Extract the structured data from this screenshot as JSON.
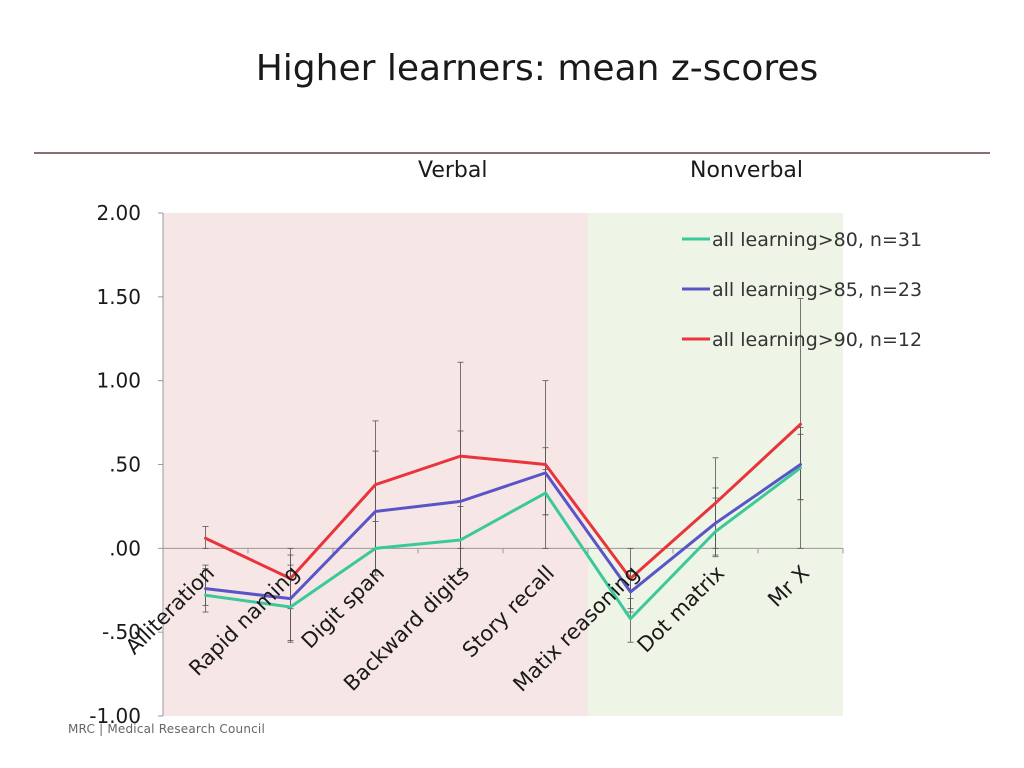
{
  "slide": {
    "title": "Higher learners: mean z-scores",
    "group_labels": {
      "verbal": "Verbal",
      "nonverbal": "Nonverbal"
    },
    "footer": "MRC | Medical Research Council"
  },
  "chart_data": {
    "type": "line",
    "title": "",
    "xlabel": "",
    "ylabel": "",
    "categories": [
      "Alliteration",
      "Rapid naming",
      "Digit span",
      "Backward digits",
      "Story recall",
      "Matix reasoning",
      "Dot matrix",
      "Mr X"
    ],
    "ylim": [
      -1.0,
      2.0
    ],
    "yticks": [
      2.0,
      1.5,
      1.0,
      0.5,
      0.0,
      -0.5,
      -1.0
    ],
    "ytick_labels": [
      "2.00",
      "1.50",
      "1.00",
      ".50",
      ".00",
      "-.50",
      "-1.00"
    ],
    "regions": [
      {
        "label": "Verbal",
        "from_category": "Alliteration",
        "to_category": "Story recall",
        "color": "#f7e6e6"
      },
      {
        "label": "Nonverbal",
        "from_category": "Matix reasoning",
        "to_category": "Mr X",
        "color": "#eef4e6"
      }
    ],
    "legend_position": "top-right",
    "series": [
      {
        "name": "all learning>80, n=31",
        "color": "#3cc99a",
        "values": [
          -0.28,
          -0.35,
          0.0,
          0.05,
          0.33,
          -0.42,
          0.1,
          0.48
        ],
        "error_low": [
          -0.34,
          -0.55,
          -0.14,
          -0.14,
          0.2,
          -0.56,
          -0.05,
          0.29
        ],
        "error_high": [
          -0.12,
          -0.1,
          0.16,
          0.25,
          0.47,
          -0.3,
          0.3,
          0.68
        ]
      },
      {
        "name": "all learning>85, n=23",
        "color": "#5a55c7",
        "values": [
          -0.24,
          -0.3,
          0.22,
          0.28,
          0.45,
          -0.26,
          0.15,
          0.5
        ],
        "error_low": [
          -0.38,
          -0.56,
          -0.16,
          -0.12,
          0.2,
          -0.38,
          -0.04,
          0.29
        ],
        "error_high": [
          -0.1,
          -0.04,
          0.58,
          0.7,
          0.6,
          -0.14,
          0.36,
          0.72
        ]
      },
      {
        "name": "all learning>90, n=12",
        "color": "#e8343a",
        "values": [
          0.06,
          -0.18,
          0.38,
          0.55,
          0.5,
          -0.18,
          0.27,
          0.74
        ],
        "error_low": [
          0.0,
          -0.36,
          0.0,
          0.0,
          0.0,
          -0.36,
          0.0,
          0.0
        ],
        "error_high": [
          0.13,
          0.0,
          0.76,
          1.11,
          1.0,
          0.0,
          0.54,
          1.49
        ]
      }
    ]
  }
}
